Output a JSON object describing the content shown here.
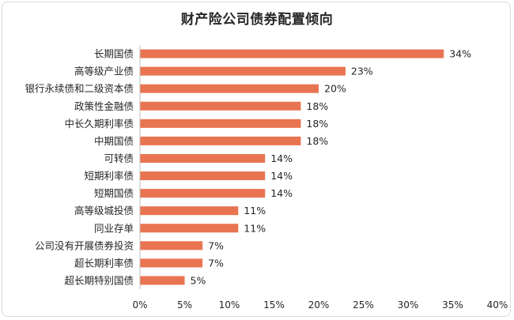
{
  "chart_data": {
    "type": "bar",
    "orientation": "horizontal",
    "title": "财产险公司债券配置倾向",
    "categories": [
      "长期国债",
      "高等级产业债",
      "银行永续债和二级资本债",
      "政策性金融债",
      "中长久期利率债",
      "中期国债",
      "可转债",
      "短期利率债",
      "短期国债",
      "高等级城投债",
      "同业存单",
      "公司没有开展债券投资",
      "超长期利率债",
      "超长期特别国债"
    ],
    "values": [
      34,
      23,
      20,
      18,
      18,
      18,
      14,
      14,
      14,
      11,
      11,
      7,
      7,
      5
    ],
    "value_labels": [
      "34%",
      "23%",
      "20%",
      "18%",
      "18%",
      "18%",
      "14%",
      "14%",
      "14%",
      "11%",
      "11%",
      "7%",
      "7%",
      "5%"
    ],
    "xticks": [
      "0%",
      "5%",
      "10%",
      "15%",
      "20%",
      "25%",
      "30%",
      "35%",
      "40%"
    ],
    "xlim": [
      0,
      40
    ],
    "bar_color": "#e97451",
    "grid": false,
    "legend": "none"
  }
}
